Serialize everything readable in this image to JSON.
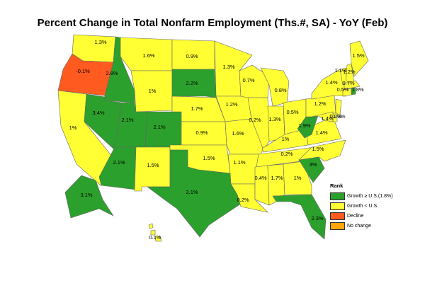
{
  "title": "Percent Change in Total Nonfarm Employment (Ths.#, SA) - YoY (Feb)",
  "colors": {
    "growth_ge_us": "#2ca02c",
    "growth_lt_us": "#ffff33",
    "decline": "#ff5a1f",
    "no_change": "#ffa500"
  },
  "legend": {
    "title": "Rank",
    "items": [
      {
        "label": "Growth ≥ U.S.(1.8%)",
        "color": "#2ca02c"
      },
      {
        "label": "Growth < U.S.",
        "color": "#ffff33"
      },
      {
        "label": "Decline",
        "color": "#ff5a1f"
      },
      {
        "label": "No change",
        "color": "#ffa500"
      }
    ]
  },
  "states": {
    "WA": {
      "value": "1.3%",
      "rank": "growth_lt_us"
    },
    "OR": {
      "value": "-0.1%",
      "rank": "decline"
    },
    "CA": {
      "value": "1%",
      "rank": "growth_lt_us"
    },
    "ID": {
      "value": "2.8%",
      "rank": "growth_ge_us"
    },
    "NV": {
      "value": "3.4%",
      "rank": "growth_ge_us"
    },
    "UT": {
      "value": "2.1%",
      "rank": "growth_ge_us"
    },
    "AZ": {
      "value": "2.1%",
      "rank": "growth_ge_us"
    },
    "MT": {
      "value": "1.6%",
      "rank": "growth_lt_us"
    },
    "WY": {
      "value": "1%",
      "rank": "growth_lt_us"
    },
    "CO": {
      "value": "2.1%",
      "rank": "growth_ge_us"
    },
    "NM": {
      "value": "1.5%",
      "rank": "growth_lt_us"
    },
    "ND": {
      "value": "0.9%",
      "rank": "growth_lt_us"
    },
    "SD": {
      "value": "2.2%",
      "rank": "growth_ge_us"
    },
    "NE": {
      "value": "1.7%",
      "rank": "growth_lt_us"
    },
    "KS": {
      "value": "0.9%",
      "rank": "growth_lt_us"
    },
    "OK": {
      "value": "1.5%",
      "rank": "growth_lt_us"
    },
    "TX": {
      "value": "2.1%",
      "rank": "growth_ge_us"
    },
    "MN": {
      "value": "1.3%",
      "rank": "growth_lt_us"
    },
    "IA": {
      "value": "1.2%",
      "rank": "growth_lt_us"
    },
    "MO": {
      "value": "1.6%",
      "rank": "growth_lt_us"
    },
    "AR": {
      "value": "1.1%",
      "rank": "growth_lt_us"
    },
    "LA": {
      "value": "0.2%",
      "rank": "growth_lt_us"
    },
    "WI": {
      "value": "0.7%",
      "rank": "growth_lt_us"
    },
    "IL": {
      "value": "0.2%",
      "rank": "growth_lt_us"
    },
    "MI": {
      "value": "0.8%",
      "rank": "growth_lt_us"
    },
    "IN": {
      "value": "1.3%",
      "rank": "growth_lt_us"
    },
    "OH": {
      "value": "0.5%",
      "rank": "growth_lt_us"
    },
    "KY": {
      "value": "1%",
      "rank": "growth_lt_us"
    },
    "TN": {
      "value": "0.2%",
      "rank": "growth_lt_us"
    },
    "MS": {
      "value": "0.4%",
      "rank": "growth_lt_us"
    },
    "AL": {
      "value": "1.7%",
      "rank": "growth_lt_us"
    },
    "GA": {
      "value": "1%",
      "rank": "growth_lt_us"
    },
    "FL": {
      "value": "2.3%",
      "rank": "growth_ge_us"
    },
    "SC": {
      "value": "3%",
      "rank": "growth_ge_us"
    },
    "NC": {
      "value": "1.5%",
      "rank": "growth_lt_us"
    },
    "VA": {
      "value": "1.4%",
      "rank": "growth_lt_us"
    },
    "WV": {
      "value": "1.9%",
      "rank": "growth_ge_us"
    },
    "PA": {
      "value": "1.2%",
      "rank": "growth_lt_us"
    },
    "NY": {
      "value": "1.4%",
      "rank": "growth_lt_us"
    },
    "VT": {
      "value": "1.1%",
      "rank": "growth_lt_us"
    },
    "NH": {
      "value": "1.2%",
      "rank": "growth_lt_us"
    },
    "ME": {
      "value": "1.5%",
      "rank": "growth_lt_us"
    },
    "MA": {
      "value": "0.7%",
      "rank": "growth_lt_us"
    },
    "CT": {
      "value": "0.5%",
      "rank": "growth_lt_us"
    },
    "RI": {
      "value": "1.8%",
      "rank": "growth_ge_us"
    },
    "NJ": {
      "value": "1.3%",
      "rank": "growth_lt_us"
    },
    "DE": {
      "value": "0.2%",
      "rank": "growth_lt_us"
    },
    "MD": {
      "value": "1.4%",
      "rank": "growth_lt_us"
    },
    "AK": {
      "value": "3.1%",
      "rank": "growth_ge_us"
    },
    "HI": {
      "value": "0.1%",
      "rank": "growth_lt_us"
    }
  }
}
